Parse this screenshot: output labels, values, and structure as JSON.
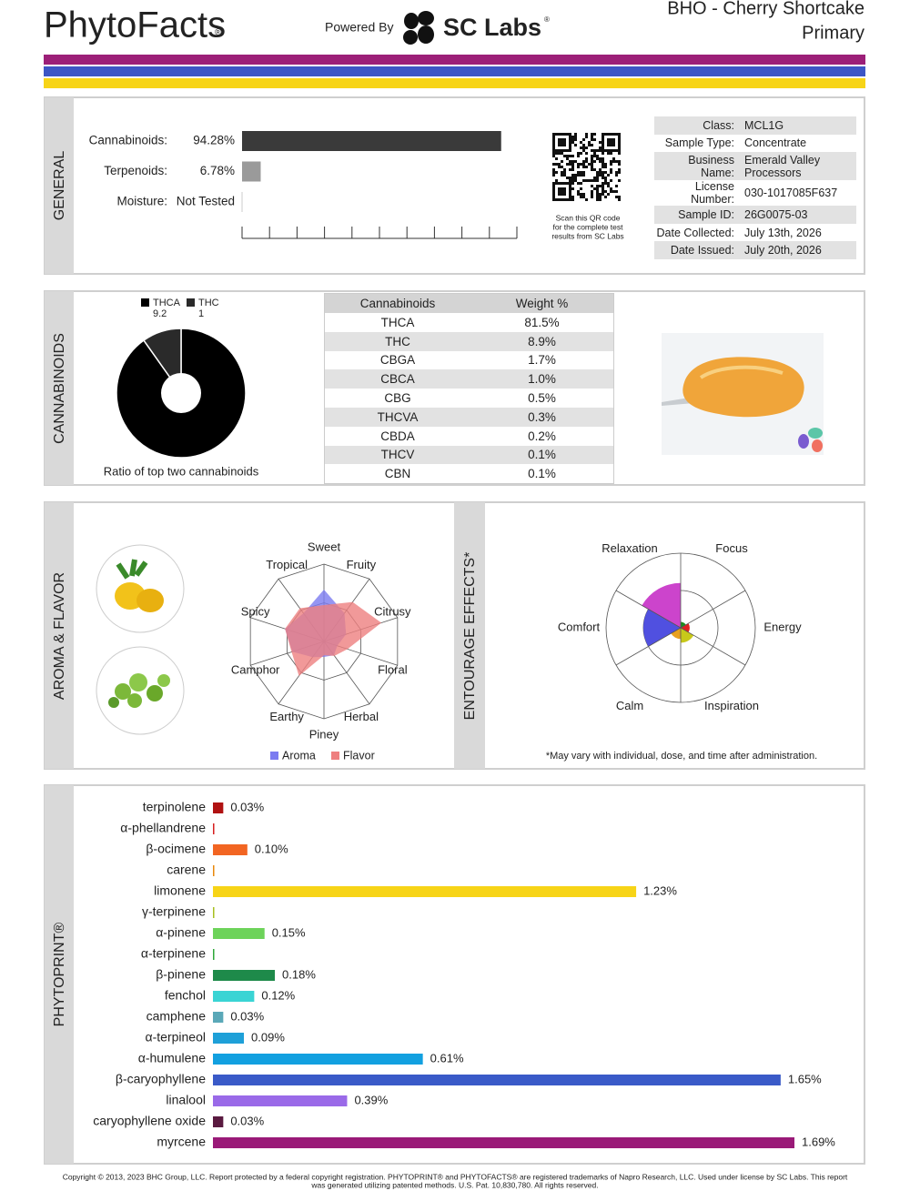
{
  "header": {
    "brand": "PhytoFacts",
    "brand_mark": "®",
    "powered_by": "Powered By",
    "lab": "SC Labs",
    "lab_mark": "®",
    "product": "BHO - Cherry Shortcake",
    "category": "Primary"
  },
  "general": {
    "title": "GENERAL",
    "qr_note": [
      "Scan this QR code",
      "for the complete test",
      "results from SC Labs"
    ],
    "info": [
      [
        "Class:",
        "MCL1G"
      ],
      [
        "Sample Type:",
        "Concentrate"
      ],
      [
        "Business Name:",
        "Emerald Valley Processors"
      ],
      [
        "License Number:",
        "030-1017085F637"
      ],
      [
        "Sample ID:",
        "26G0075-03"
      ],
      [
        "Date Collected:",
        "July 13th, 2026"
      ],
      [
        "Date Issued:",
        "July 20th, 2026"
      ]
    ]
  },
  "cannabinoids": {
    "title": "CANNABINOIDS",
    "table": {
      "header": [
        "Cannabinoids",
        "Weight %"
      ],
      "rows": [
        [
          "THCA",
          "81.5%"
        ],
        [
          "THC",
          "8.9%"
        ],
        [
          "CBGA",
          "1.7%"
        ],
        [
          "CBCA",
          "1.0%"
        ],
        [
          "CBG",
          "0.5%"
        ],
        [
          "THCVA",
          "0.3%"
        ],
        [
          "CBDA",
          "0.2%"
        ],
        [
          "THCV",
          "0.1%"
        ],
        [
          "CBN",
          "0.1%"
        ]
      ]
    }
  },
  "aroma": {
    "title": "AROMA & FLAVOR"
  },
  "effects": {
    "title": "ENTOURAGE EFFECTS*",
    "note": "*May vary with individual, dose, and time after administration."
  },
  "phytoprint": {
    "title": "PHYTOPRINT®"
  },
  "footer": [
    "Copyright © 2013, 2023 BHC Group, LLC. Report protected by a federal copyright registration. PHYTOPRINT® and PHYTOFACTS® are registered trademarks of Napro Research, LLC. Used under license by SC Labs. This report",
    "was generated utilizing patented methods. U.S. Pat. 10,830,780. All rights reserved."
  ],
  "chart_data": [
    {
      "type": "bar",
      "categories": [
        "Cannabinoids:",
        "Terpenoids:",
        "Moisture:"
      ],
      "values": [
        94.28,
        6.78,
        null
      ],
      "value_labels": [
        "94.28%",
        "6.78%",
        "Not Tested"
      ],
      "colors": [
        "#3a3a3a",
        "#9a9a9a",
        "#dddddd"
      ],
      "xlim": [
        0,
        100
      ],
      "xticks": [
        0,
        10,
        20,
        30,
        40,
        50,
        60,
        70,
        80,
        90,
        100
      ]
    },
    {
      "type": "pie",
      "categories": [
        "THCA",
        "THC"
      ],
      "values": [
        9.2,
        1.0
      ],
      "colors": [
        "#000000",
        "#2a2a2a"
      ],
      "caption": "Ratio of top two cannabinoids"
    },
    {
      "type": "radar",
      "categories": [
        "Sweet",
        "Fruity",
        "Citrusy",
        "Floral",
        "Herbal",
        "Piney",
        "Earthy",
        "Camphor",
        "Spicy",
        "Tropical"
      ],
      "series": [
        {
          "name": "Aroma",
          "color": "#7b7bf0",
          "values": [
            6.7,
            4.5,
            3.0,
            1.8,
            2.2,
            2.0,
            2.5,
            4.3,
            5.3,
            4.5
          ]
        },
        {
          "name": "Flavor",
          "color": "#ee7f7f",
          "values": [
            4.7,
            6.3,
            7.8,
            3.2,
            2.3,
            1.8,
            5.5,
            4.4,
            5.3,
            5.3
          ]
        }
      ],
      "rlim": [
        0,
        10
      ],
      "rticks": [
        5,
        10
      ]
    },
    {
      "type": "polar_area",
      "categories": [
        "Focus",
        "Energy",
        "Inspiration",
        "Calm",
        "Comfort",
        "Relaxation"
      ],
      "values": [
        0.8,
        1.2,
        2.0,
        1.5,
        5.0,
        6.0
      ],
      "colors": [
        "#1e8c1e",
        "#e02020",
        "#c8c81a",
        "#e8a020",
        "#5050e0",
        "#cc44cc"
      ],
      "rlim": [
        0,
        10
      ],
      "rticks": [
        5,
        10
      ]
    },
    {
      "type": "bar",
      "categories": [
        "terpinolene",
        "α-phellandrene",
        "β-ocimene",
        "carene",
        "limonene",
        "γ-terpinene",
        "α-pinene",
        "α-terpinene",
        "β-pinene",
        "fenchol",
        "camphene",
        "α-terpineol",
        "α-humulene",
        "β-caryophyllene",
        "linalool",
        "caryophyllene oxide",
        "myrcene"
      ],
      "values": [
        0.03,
        0.004,
        0.1,
        0.004,
        1.23,
        0.004,
        0.15,
        0.004,
        0.18,
        0.12,
        0.03,
        0.09,
        0.61,
        1.65,
        0.39,
        0.03,
        1.69
      ],
      "value_labels": [
        "0.03%",
        null,
        "0.10%",
        null,
        "1.23%",
        null,
        "0.15%",
        null,
        "0.18%",
        "0.12%",
        "0.03%",
        "0.09%",
        "0.61%",
        "1.65%",
        "0.39%",
        "0.03%",
        "1.69%"
      ],
      "colors": [
        "#b01212",
        "#d62020",
        "#f26522",
        "#e8890c",
        "#f7d417",
        "#a8c020",
        "#6dd35a",
        "#2ea83a",
        "#1e8a4a",
        "#3ad4d4",
        "#5aa8b8",
        "#1ea0d8",
        "#12a0e0",
        "#3a5ac8",
        "#9a6ae8",
        "#5a1a40",
        "#9a1a78"
      ],
      "xlim": [
        0,
        1.69
      ]
    }
  ]
}
